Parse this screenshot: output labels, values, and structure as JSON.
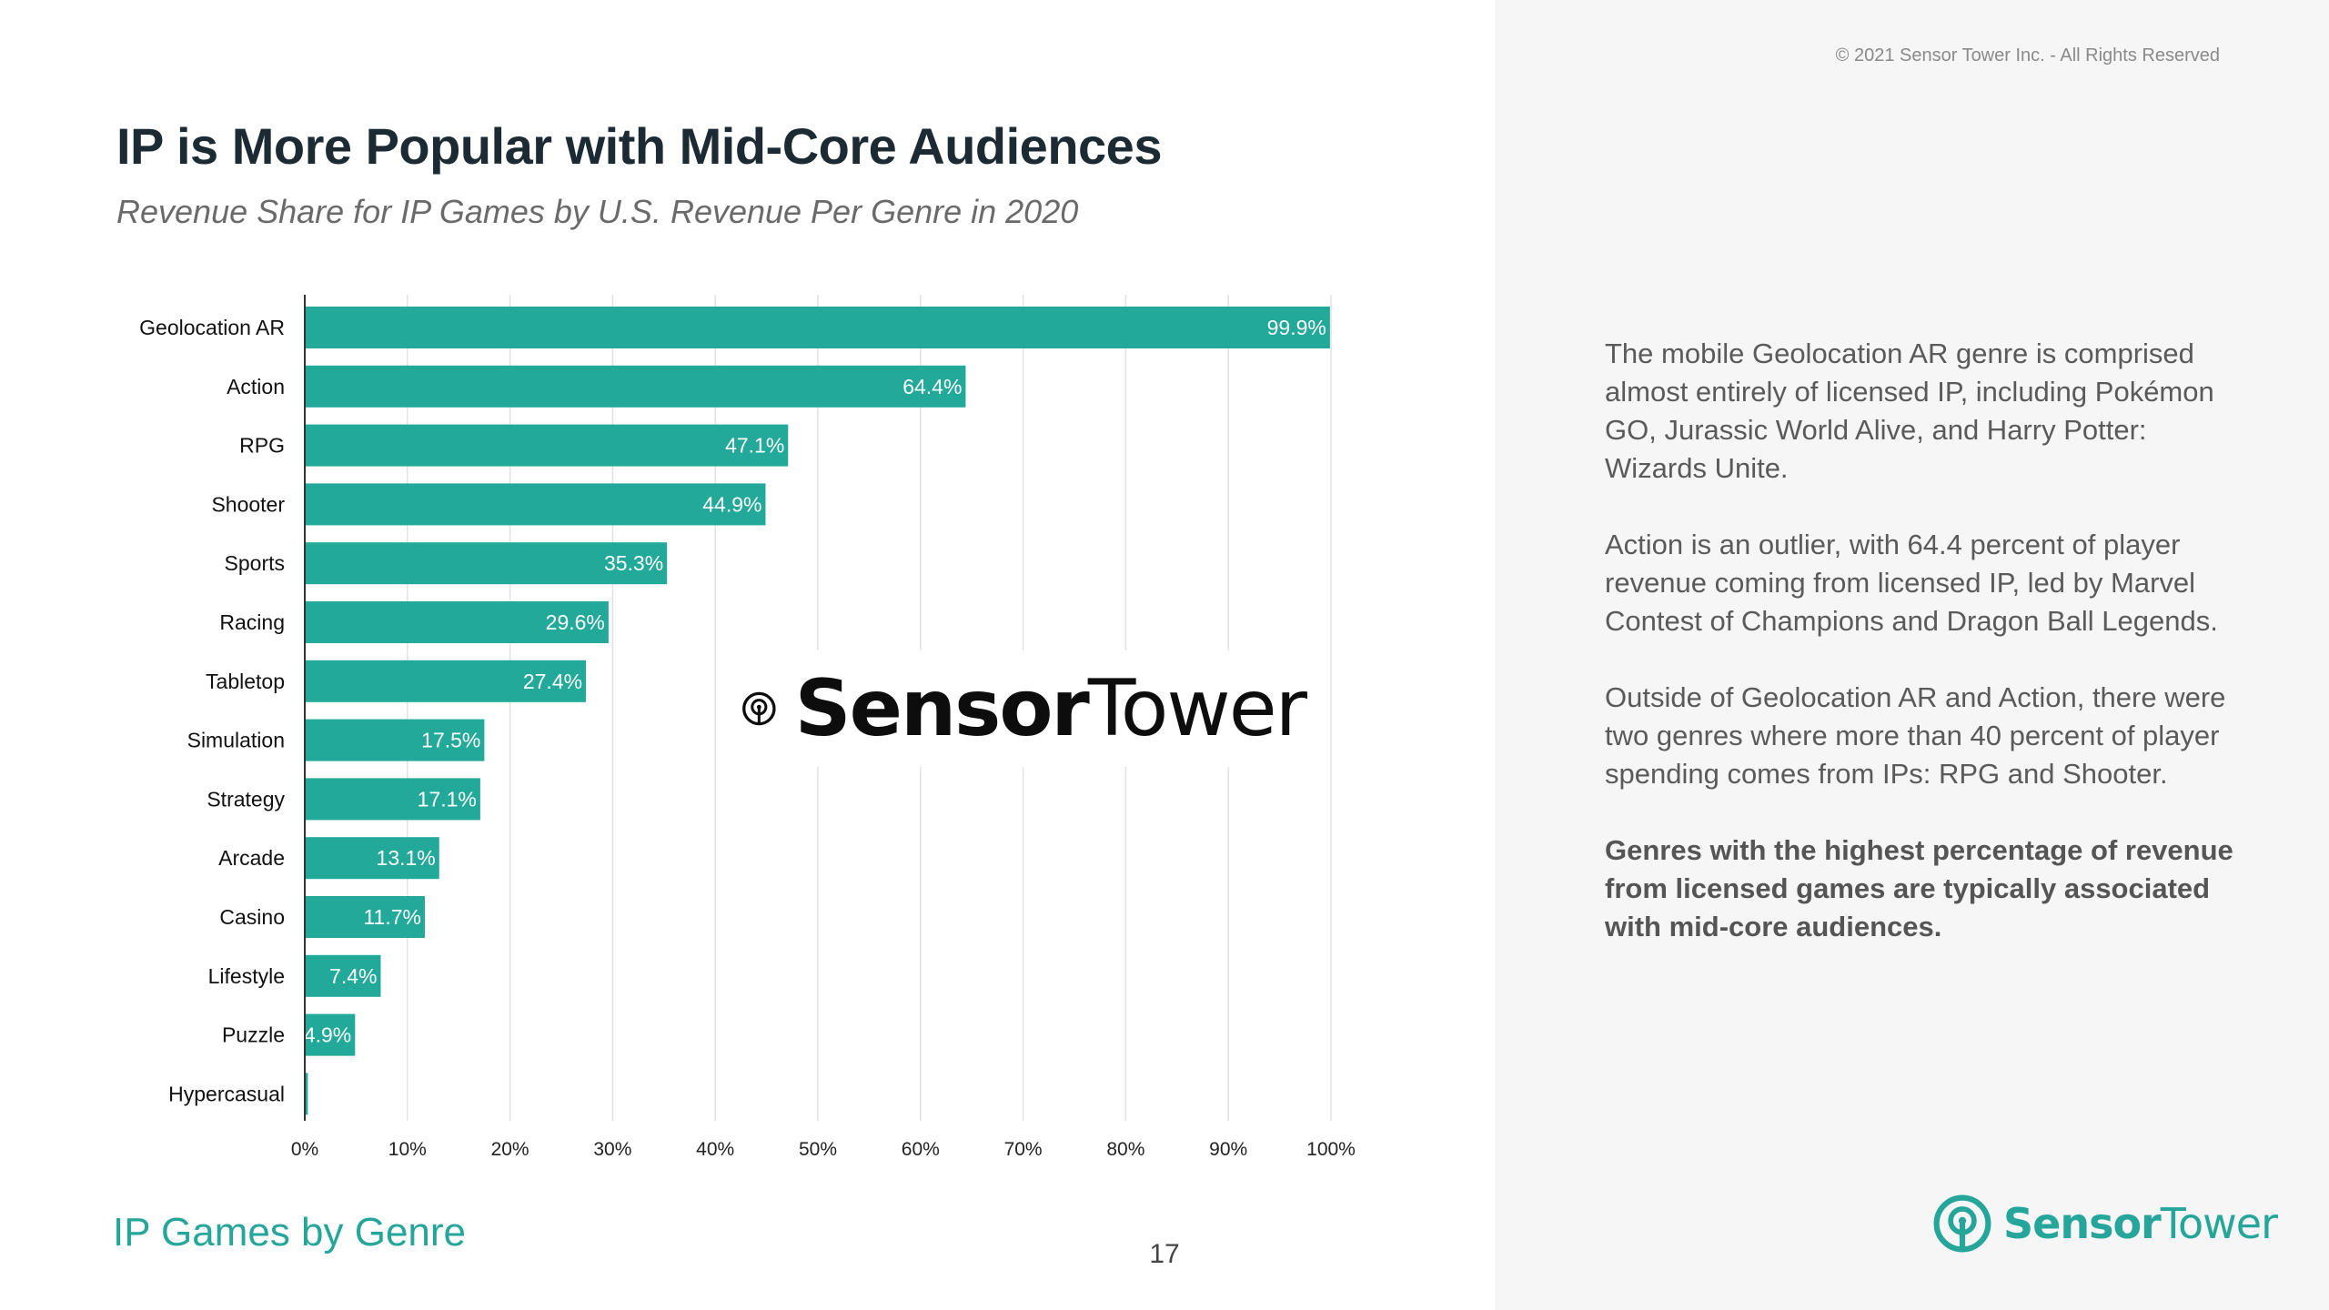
{
  "colors": {
    "bar": "#22a99a",
    "accent": "#26a69a",
    "title": "#1b2a33"
  },
  "copyright": "© 2021 Sensor Tower Inc. - All Rights Reserved",
  "header": {
    "title": "IP is More Popular with Mid-Core Audiences",
    "subtitle": "Revenue Share for IP Games by U.S. Revenue Per Genre in 2020"
  },
  "watermark": {
    "brand_bold": "Sensor",
    "brand_light": "Tower",
    "icon": "sensor-tower-logo-icon"
  },
  "description": {
    "paragraphs": [
      "The mobile Geolocation AR genre is comprised almost entirely of licensed IP, including Pokémon GO, Jurassic World Alive, and Harry Potter: Wizards Unite.",
      "Action is an outlier, with 64.4 percent of player revenue coming  from licensed IP, led by Marvel Contest of Champions and Dragon Ball Legends.",
      "Outside of Geolocation AR and Action, there were two genres where more than 40 percent of player spending comes from IPs: RPG and Shooter.",
      "Genres with the highest percentage of revenue from licensed games are typically associated with mid-core audiences."
    ]
  },
  "footer": {
    "section": "IP Games by Genre",
    "page_number": "17",
    "brand_bold": "Sensor",
    "brand_light": "Tower"
  },
  "chart_data": {
    "type": "bar",
    "orientation": "horizontal",
    "title": "Revenue Share for IP Games by U.S. Revenue Per Genre in 2020",
    "xlabel": "",
    "ylabel": "",
    "categories": [
      "Geolocation AR",
      "Action",
      "RPG",
      "Shooter",
      "Sports",
      "Racing",
      "Tabletop",
      "Simulation",
      "Strategy",
      "Arcade",
      "Casino",
      "Lifestyle",
      "Puzzle",
      "Hypercasual"
    ],
    "values": [
      99.9,
      64.4,
      47.1,
      44.9,
      35.3,
      29.6,
      27.4,
      17.5,
      17.1,
      13.1,
      11.7,
      7.4,
      4.9,
      0.3
    ],
    "labels": [
      "99.9%",
      "64.4%",
      "47.1%",
      "44.9%",
      "35.3%",
      "29.6%",
      "27.4%",
      "17.5%",
      "17.1%",
      "13.1%",
      "11.7%",
      "7.4%",
      "4.9%",
      ""
    ],
    "xlim": [
      0,
      100
    ],
    "xticks": [
      "0%",
      "10%",
      "20%",
      "30%",
      "40%",
      "50%",
      "60%",
      "70%",
      "80%",
      "90%",
      "100%"
    ],
    "grid": true,
    "legend": "none"
  }
}
